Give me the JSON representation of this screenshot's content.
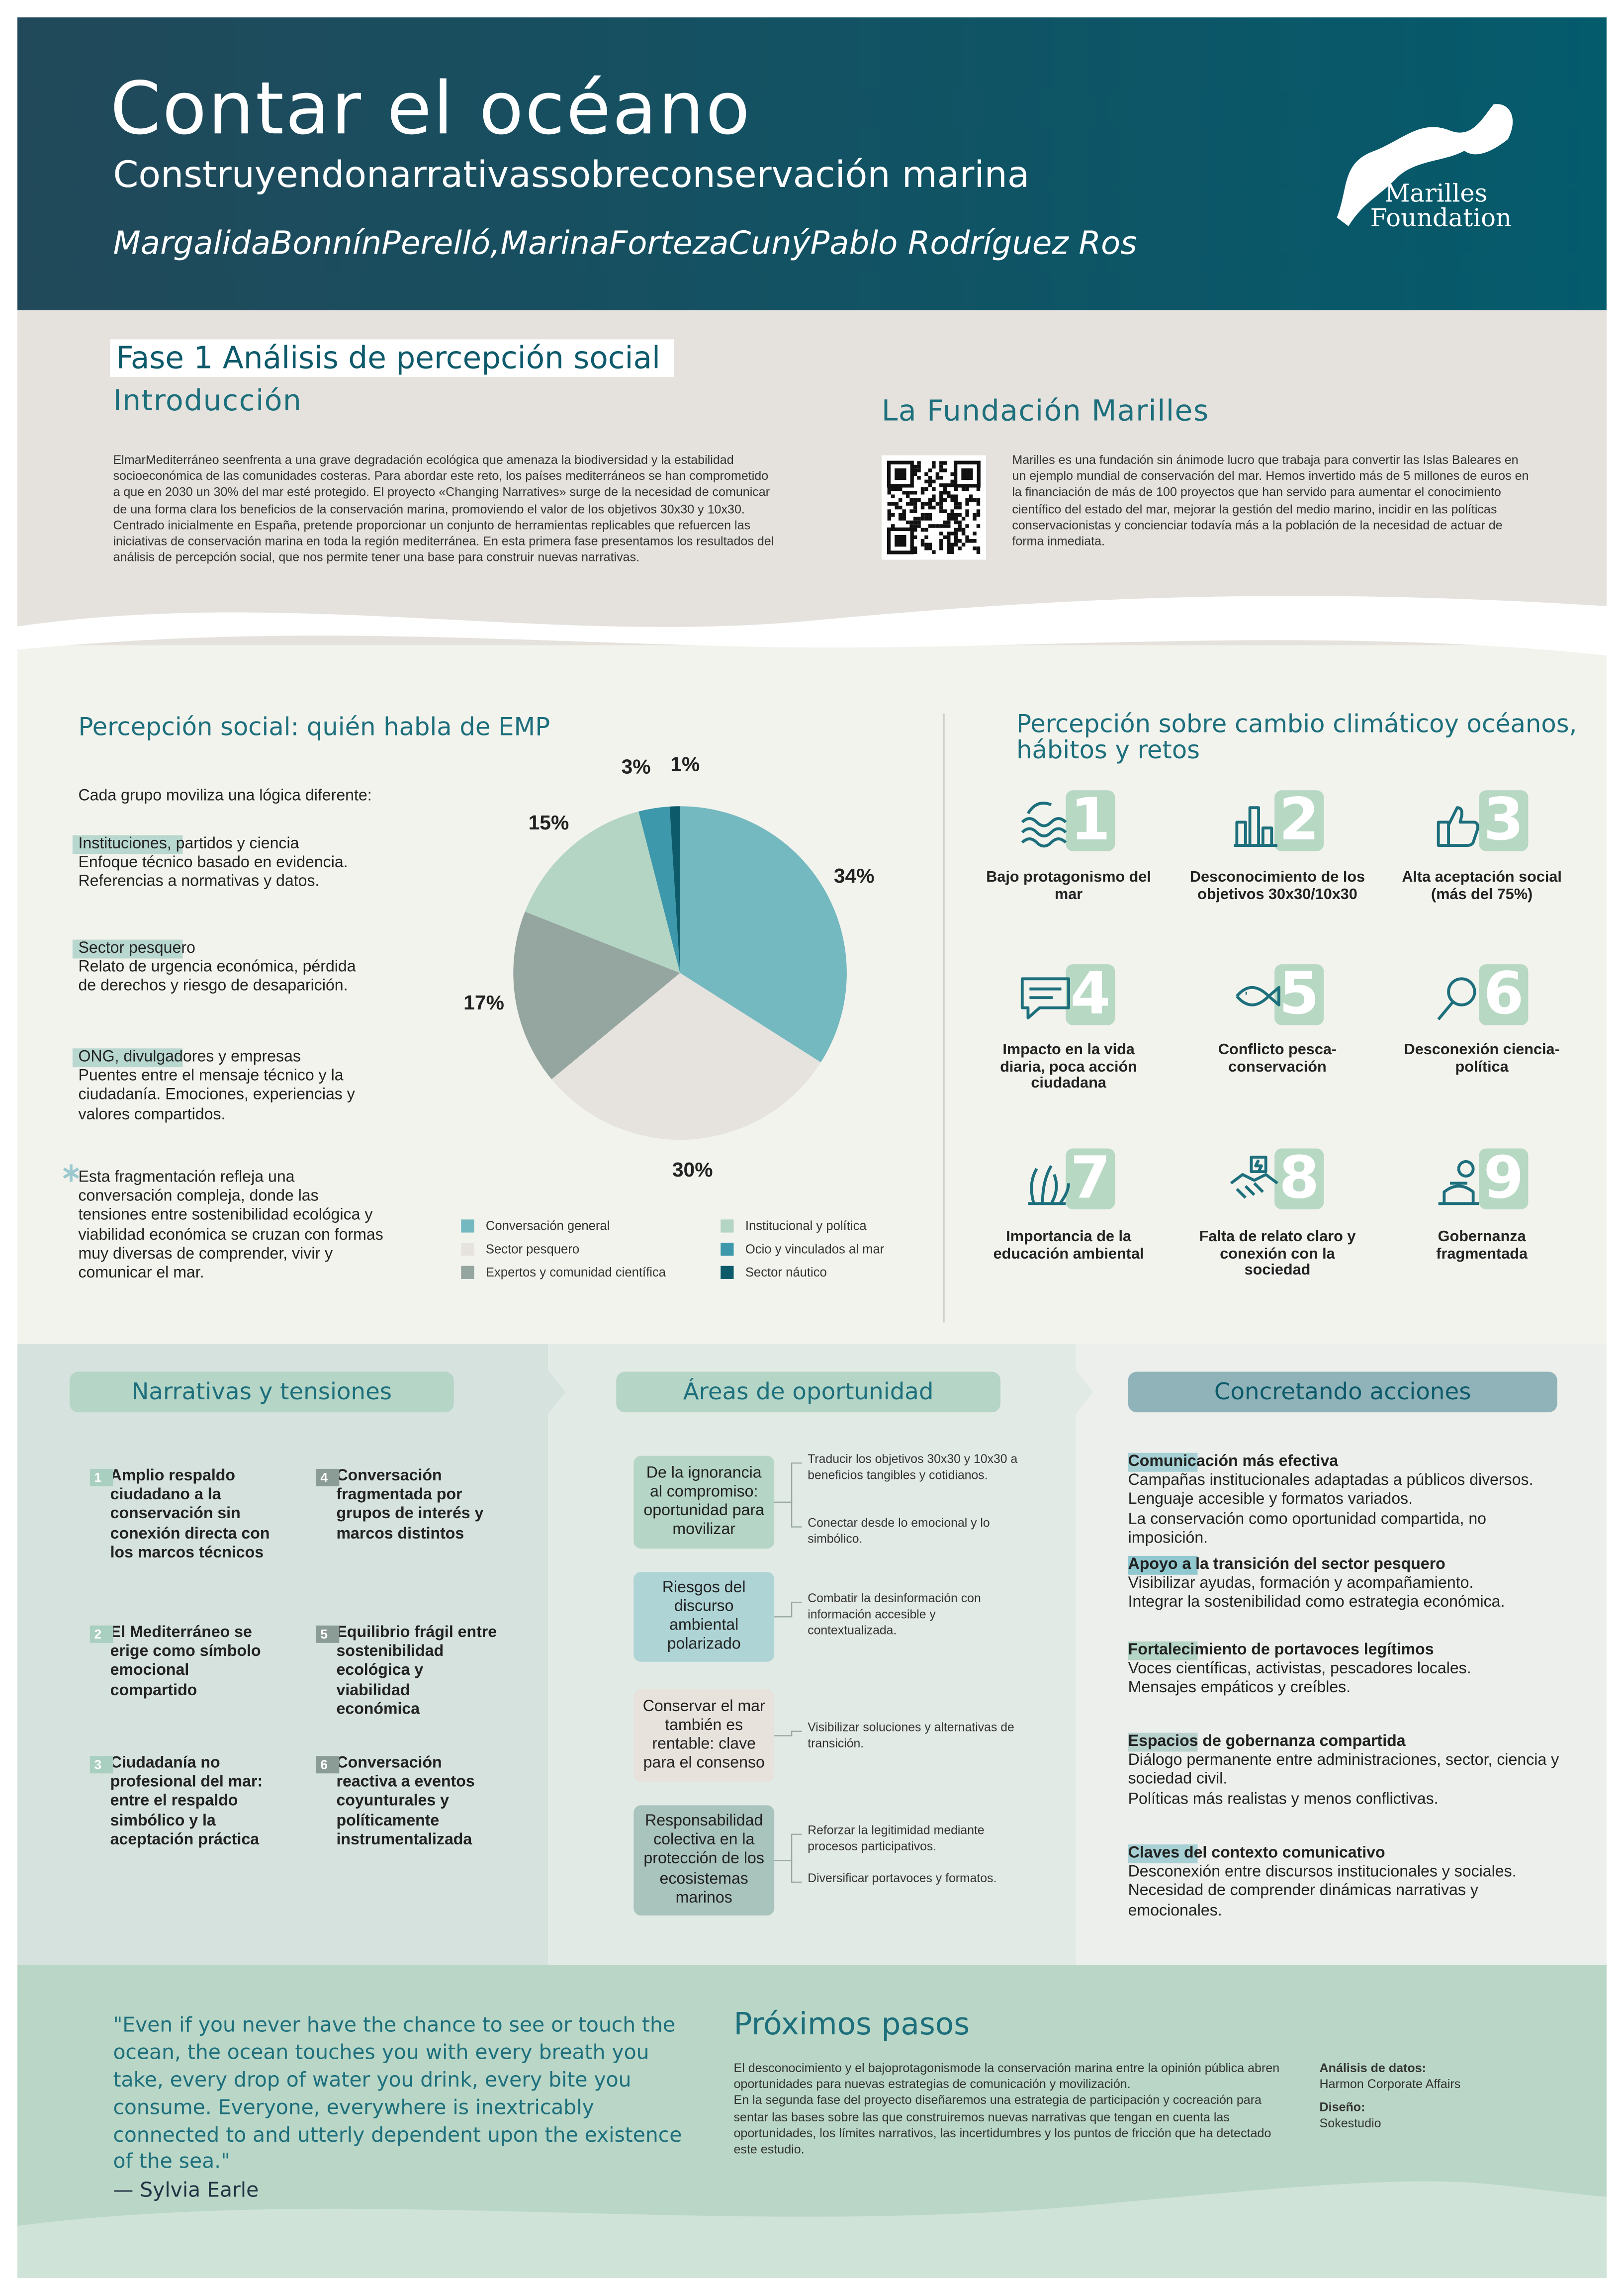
{
  "header": {
    "title": "Contar el océano",
    "subtitle": "Construyendonarrativassobreconservación marina",
    "authors": "MargalidaBonnínPerelló,MarinaFortezaCunýPablo Rodríguez Ros",
    "logo_line1": "Marilles",
    "logo_line2": "Foundation"
  },
  "intro": {
    "phase_title": "Fase 1 Análisis de percepción social",
    "heading": "Introducción",
    "text": "ElmarMediterráneo seenfrenta a una grave degradación ecológica que amenaza la biodiversidad y la estabilidad socioeconómica de las comunidades costeras. Para abordar este reto, los países mediterráneos se han comprometido a que en 2030 un 30% del mar esté protegido. El proyecto «Changing Narratives» surge de la necesidad de comunicar de una forma clara los beneficios de la conservación marina, promoviendo el valor de los objetivos 30x30 y 10x30. Centrado inicialmente en España, pretende proporcionar un conjunto de herramientas replicables que refuercen las iniciativas de conservación marina en toda la región mediterránea. En esta primera fase presentamos los resultados del análisis de percepción social, que nos permite tener una base para construir nuevas narrativas.",
    "foundation_heading": "La Fundación Marilles",
    "foundation_text": "Marilles es una fundación sin ánimode lucro que trabaja para convertir las Islas Baleares en un ejemplo mundial de conservación del mar. Hemos invertido más de 5 millones de euros en la financiación de más de 100 proyectos que han servido para aumentar el conocimiento científico del estado del mar, mejorar la gestión del medio marino, incidir en las políticas conservacionistas y concienciar todavía más a la población de la necesidad de actuar de forma inmediata."
  },
  "perception": {
    "heading": "Percepción social: quién habla de EMP",
    "lead": "Cada grupo moviliza una lógica diferente:",
    "groups": [
      {
        "title": "Instituciones, partidos y ciencia",
        "text": "Enfoque técnico basado en evidencia. Referencias a normativas y datos."
      },
      {
        "title": "Sector pesquero",
        "text": "Relato de urgencia económica, pérdida de derechos y riesgo de desaparición."
      },
      {
        "title": "ONG, divulgadores y empresas",
        "text": "Puentes entre el mensaje técnico y la ciudadanía. Emociones, experiencias y valores compartidos."
      }
    ],
    "note": "Esta fragmentación refleja una conversación compleja, donde las tensiones entre sostenibilidad ecológica y viabilidad económica se cruzan con formas muy diversas de comprender, vivir y comunicar el mar."
  },
  "chart_data": {
    "type": "pie",
    "categories": [
      "Conversación general",
      "Sector pesquero",
      "Expertos y comunidad científica",
      "Institucional y política",
      "Ocio y vinculados al mar",
      "Sector náutico"
    ],
    "values": [
      34,
      30,
      17,
      15,
      3,
      1
    ],
    "value_labels": [
      "34%",
      "30%",
      "17%",
      "15%",
      "3%",
      "1%"
    ],
    "colors": [
      "#75b9c0",
      "#e6e3df",
      "#95a5a0",
      "#b4d4c4",
      "#3c98aa",
      "#0d5a6b"
    ]
  },
  "climate": {
    "heading": "Percepción sobre cambio climáticoy océanos, hábitos y retos",
    "items": [
      {
        "number": 1,
        "label": "Bajo protagonismo del mar"
      },
      {
        "number": 2,
        "label": "Desconocimiento de los objetivos 30x30/10x30"
      },
      {
        "number": 3,
        "label": "Alta aceptación social (más del 75%)"
      },
      {
        "number": 4,
        "label": "Impacto en la vida diaria, poca acción ciudadana"
      },
      {
        "number": 5,
        "label": "Conflicto pesca-conservación"
      },
      {
        "number": 6,
        "label": "Desconexión ciencia-política"
      },
      {
        "number": 7,
        "label": "Importancia de la educación ambiental"
      },
      {
        "number": 8,
        "label": "Falta de relato claro y conexión con la sociedad"
      },
      {
        "number": 9,
        "label": "Gobernanza fragmentada"
      }
    ]
  },
  "narratives": {
    "heading": "Narrativas y tensiones",
    "items": [
      {
        "number": 1,
        "text": "Amplio respaldo ciudadano a la conservación sin conexión directa con los marcos técnicos"
      },
      {
        "number": 2,
        "text": "El Mediterráneo se erige como símbolo emocional compartido"
      },
      {
        "number": 3,
        "text": "Ciudadanía no profesional del mar: entre el respaldo simbólico y la aceptación práctica"
      },
      {
        "number": 4,
        "text": "Conversación fragmentada por grupos de interés y marcos distintos"
      },
      {
        "number": 5,
        "text": "Equilibrio frágil entre sostenibilidad ecológica y viabilidad económica"
      },
      {
        "number": 6,
        "text": "Conversación reactiva a eventos coyunturales y políticamente instrumentalizada"
      }
    ]
  },
  "opportunities": {
    "heading": "Áreas de oportunidad",
    "items": [
      {
        "title": "De la ignorancia al compromiso: oportunidad para movilizar",
        "actions": [
          "Traducir los objetivos 30x30 y 10x30 a beneficios tangibles y cotidianos.",
          "Conectar desde lo emocional y lo simbólico."
        ]
      },
      {
        "title": "Riesgos del discurso ambiental polarizado",
        "actions": [
          "Combatir la desinformación con información accesible y contextualizada."
        ]
      },
      {
        "title": "Conservar el mar también es rentable: clave para el consenso",
        "actions": [
          "Visibilizar soluciones y alternativas de transición."
        ]
      },
      {
        "title": "Responsabilidad colectiva en la protección de los ecosistemas marinos",
        "actions": [
          "Reforzar la legitimidad mediante procesos participativos.",
          "Diversificar portavoces y formatos."
        ]
      }
    ]
  },
  "actions": {
    "heading": "Concretando acciones",
    "items": [
      {
        "title": "Comunicación más efectiva",
        "lines": [
          "Campañas institucionales adaptadas a públicos diversos.",
          "Lenguaje accesible y formatos variados.",
          "La conservación como oportunidad compartida, no imposición."
        ]
      },
      {
        "title": "Apoyo a la transición del sector pesquero",
        "lines": [
          "Visibilizar ayudas, formación y acompañamiento.",
          "Integrar la sostenibilidad como estrategia económica."
        ]
      },
      {
        "title": "Fortalecimiento de portavoces legítimos",
        "lines": [
          "Voces científicas, activistas, pescadores locales.",
          "Mensajes empáticos y creíbles."
        ]
      },
      {
        "title": "Espacios de gobernanza compartida",
        "lines": [
          "Diálogo permanente entre administraciones, sector, ciencia y sociedad civil.",
          "Políticas más realistas y menos conflictivas."
        ]
      },
      {
        "title": "Claves del contexto comunicativo",
        "lines": [
          "Desconexión entre discursos institucionales y sociales.",
          "Necesidad de comprender dinámicas narrativas y emocionales."
        ]
      }
    ]
  },
  "quote": {
    "text": "\"Even if you never have the chance to see or touch the ocean, the ocean touches you with every breath you take, every drop of water you drink, every bite you consume. Everyone, everywhere is inextricably connected to and utterly dependent upon the existence of the sea.\"",
    "author": "— Sylvia Earle"
  },
  "next_steps": {
    "heading": "Próximos pasos",
    "paragraphs": [
      "El desconocimiento y el bajoprotagonismode la conservación marina entre la opinión pública abren oportunidades para nuevas estrategias de comunicación y movilización.",
      "En la segunda fase del proyecto diseñaremos una estrategia de participación y cocreación para sentar las bases sobre las que construiremos nuevas narrativas que tengan en cuenta las oportunidades, los límites narrativos, las incertidumbres y los puntos de fricción que ha detectado este estudio."
    ],
    "credits": [
      {
        "label": "Análisis de datos:",
        "value": "Harmon Corporate Affairs"
      },
      {
        "label": "Diseño:",
        "value": "Sokestudio"
      }
    ]
  }
}
